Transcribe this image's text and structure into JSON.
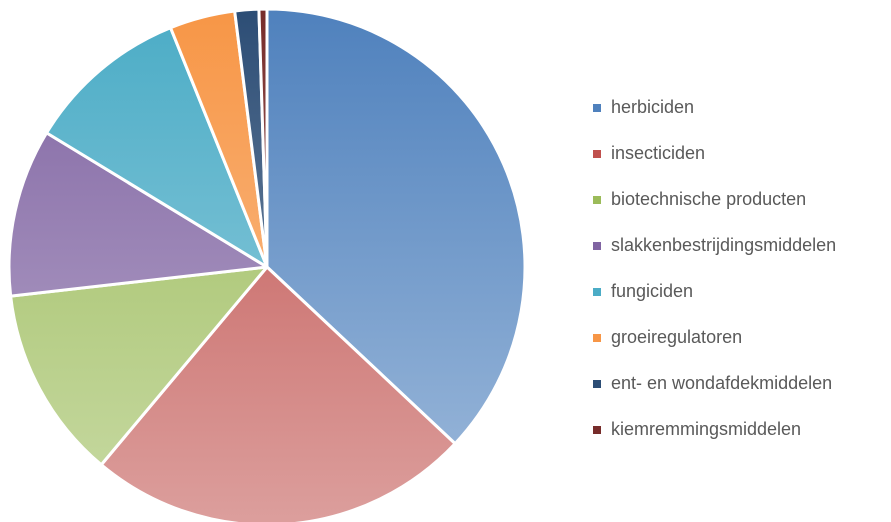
{
  "chart_data": {
    "type": "pie",
    "categories": [
      "herbiciden",
      "insecticiden",
      "biotechnische producten",
      "slakkenbestrijdingsmiddelen",
      "fungiciden",
      "groeiregulatoren",
      "ent- en wondafdekmiddelen",
      "kiemremmingsmiddelen"
    ],
    "values": [
      37.0,
      24.1,
      12.1,
      10.5,
      10.2,
      4.1,
      1.5,
      0.5
    ],
    "colors": [
      "#4f81bd",
      "#c0504d",
      "#9bbb59",
      "#8064a2",
      "#4bacc6",
      "#f79646",
      "#2c4d75",
      "#772c2a"
    ],
    "legend": "right"
  }
}
